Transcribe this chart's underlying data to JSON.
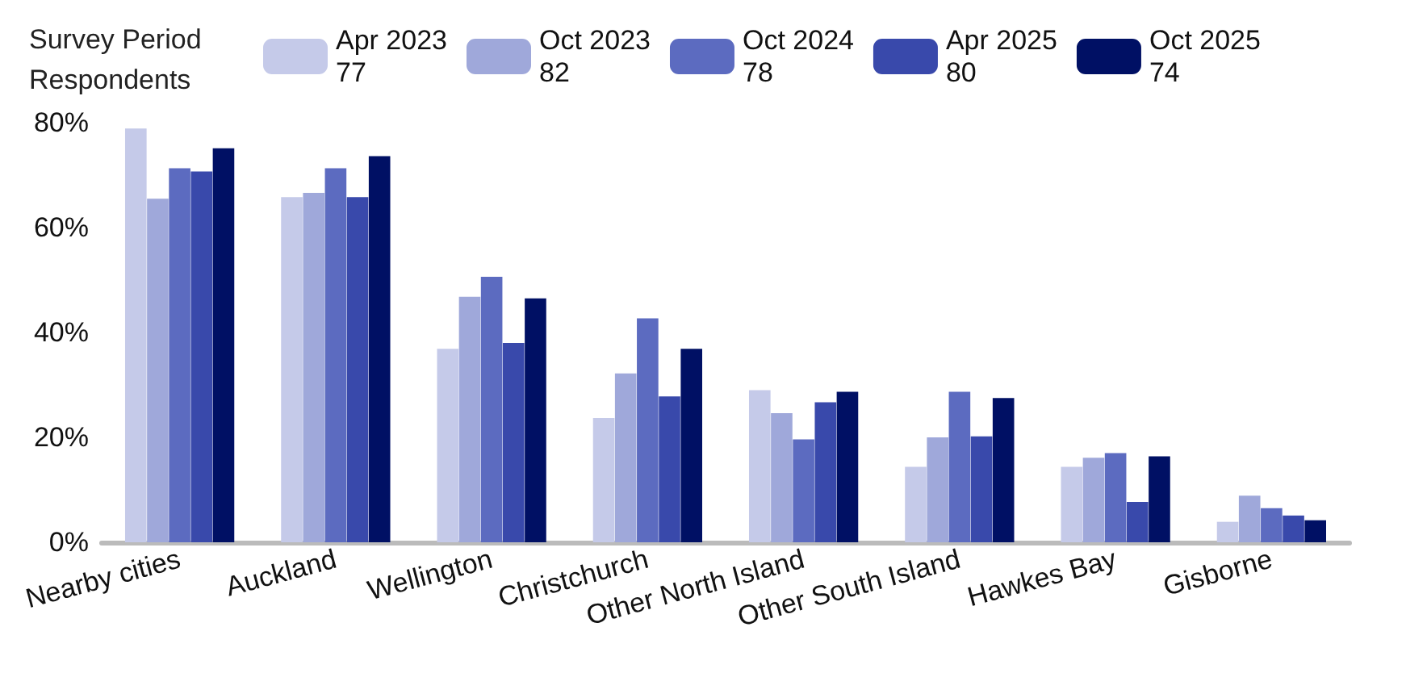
{
  "chart_data": {
    "type": "bar",
    "legend_title": "Survey Period\nRespondents",
    "categories": [
      "Nearby cities",
      "Auckland",
      "Wellington",
      "Christchurch",
      "Other North Island",
      "Other South Island",
      "Hawkes Bay",
      "Gisborne"
    ],
    "series": [
      {
        "name": "Apr 2023\n77",
        "color": "#c5cae9",
        "values": [
          78.9,
          65.8,
          36.9,
          23.7,
          29.0,
          14.4,
          14.4,
          3.9
        ]
      },
      {
        "name": "Oct 2023\n82",
        "color": "#9fa8da",
        "values": [
          65.5,
          66.6,
          46.8,
          32.2,
          24.6,
          20.0,
          16.1,
          8.9
        ]
      },
      {
        "name": "Oct 2024\n78",
        "color": "#5c6bc0",
        "values": [
          71.3,
          71.3,
          50.6,
          42.7,
          19.6,
          28.7,
          17.0,
          6.5
        ]
      },
      {
        "name": "Apr 2025\n80",
        "color": "#3949ab",
        "values": [
          70.7,
          65.8,
          38.0,
          27.8,
          26.7,
          20.2,
          7.7,
          5.1
        ]
      },
      {
        "name": "Oct 2025\n74",
        "color": "#001064",
        "values": [
          75.1,
          73.6,
          46.5,
          36.9,
          28.7,
          27.5,
          16.4,
          4.2
        ]
      }
    ],
    "ylim": [
      0,
      80
    ],
    "yticks": [
      {
        "value": 0,
        "label": "0%"
      },
      {
        "value": 20,
        "label": "20%"
      },
      {
        "value": 40,
        "label": "40%"
      },
      {
        "value": 60,
        "label": "60%"
      },
      {
        "value": 80,
        "label": "80%"
      }
    ],
    "grid": false,
    "legend": "top"
  }
}
